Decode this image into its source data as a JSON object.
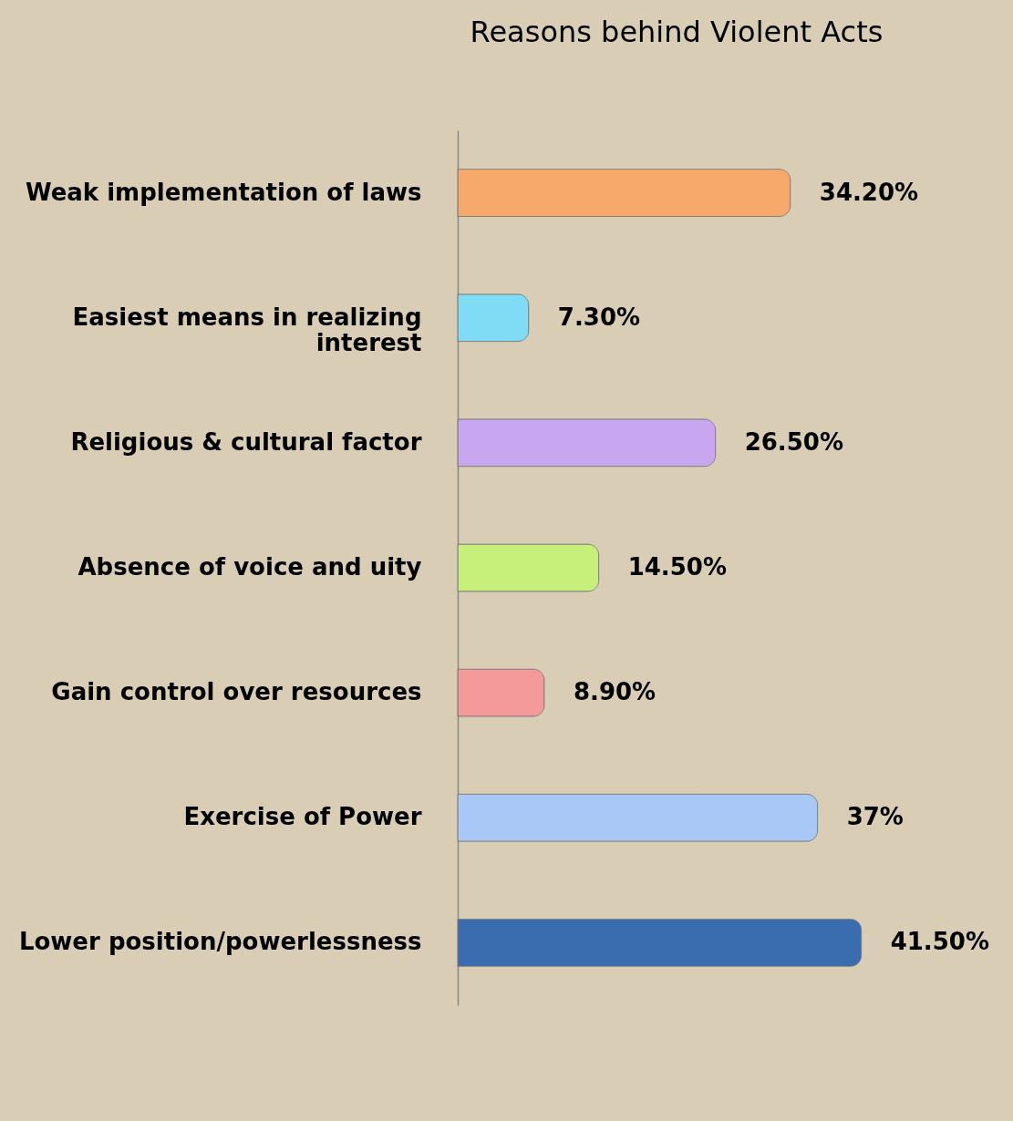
{
  "chart_data": {
    "type": "bar",
    "orientation": "horizontal",
    "title": "Reasons behind Violent Acts",
    "categories": [
      "Weak implementation of laws",
      "Easiest  means in realizing interest",
      "Religious & cultural factor",
      "Absence of voice and uity",
      "Gain control over resources",
      "Exercise of Power",
      "Lower position/powerlessness"
    ],
    "values": [
      34.2,
      7.3,
      26.5,
      14.5,
      8.9,
      37,
      41.5
    ],
    "value_labels": [
      "34.20%",
      "7.30%",
      "26.50%",
      "14.50%",
      "8.90%",
      "37%",
      "41.50%"
    ],
    "colors": [
      "#f6a96a",
      "#7fdcf4",
      "#c9a6f0",
      "#c6f07a",
      "#f49a9a",
      "#a9c8f6",
      "#3a6cb0"
    ],
    "grid": false
  }
}
